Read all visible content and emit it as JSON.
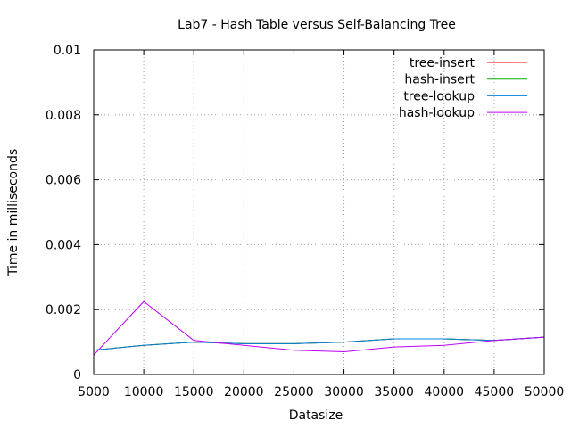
{
  "chart_data": {
    "type": "line",
    "title": "Lab7 - Hash Table versus Self-Balancing Tree",
    "xlabel": "Datasize",
    "ylabel": "Time in milliseconds",
    "xlim": [
      5000,
      50000
    ],
    "ylim": [
      0,
      0.01
    ],
    "x_ticks": [
      "5000",
      "10000",
      "15000",
      "20000",
      "25000",
      "30000",
      "35000",
      "40000",
      "45000",
      "50000"
    ],
    "y_ticks": [
      "0",
      "0.002",
      "0.004",
      "0.006",
      "0.008",
      "0.01"
    ],
    "grid": true,
    "legend_position": "top-right",
    "x": [
      5000,
      10000,
      15000,
      20000,
      25000,
      30000,
      35000,
      40000,
      45000,
      50000
    ],
    "series": [
      {
        "name": "tree-insert",
        "color": "#ff0000",
        "values": [
          0.00075,
          0.0009,
          0.001,
          0.00095,
          0.00095,
          0.001,
          0.0011,
          0.0011,
          0.00105,
          0.00115
        ]
      },
      {
        "name": "hash-insert",
        "color": "#00b000",
        "values": [
          0.00075,
          0.0009,
          0.001,
          0.00095,
          0.00095,
          0.001,
          0.0011,
          0.0011,
          0.00105,
          0.00115
        ]
      },
      {
        "name": "tree-lookup",
        "color": "#0080e0",
        "values": [
          0.00075,
          0.0009,
          0.001,
          0.00095,
          0.00095,
          0.001,
          0.0011,
          0.0011,
          0.00105,
          0.00115
        ]
      },
      {
        "name": "hash-lookup",
        "color": "#c000ff",
        "values": [
          0.0006,
          0.00225,
          0.00105,
          0.0009,
          0.00075,
          0.0007,
          0.00085,
          0.0009,
          0.00105,
          0.00115
        ]
      }
    ]
  }
}
